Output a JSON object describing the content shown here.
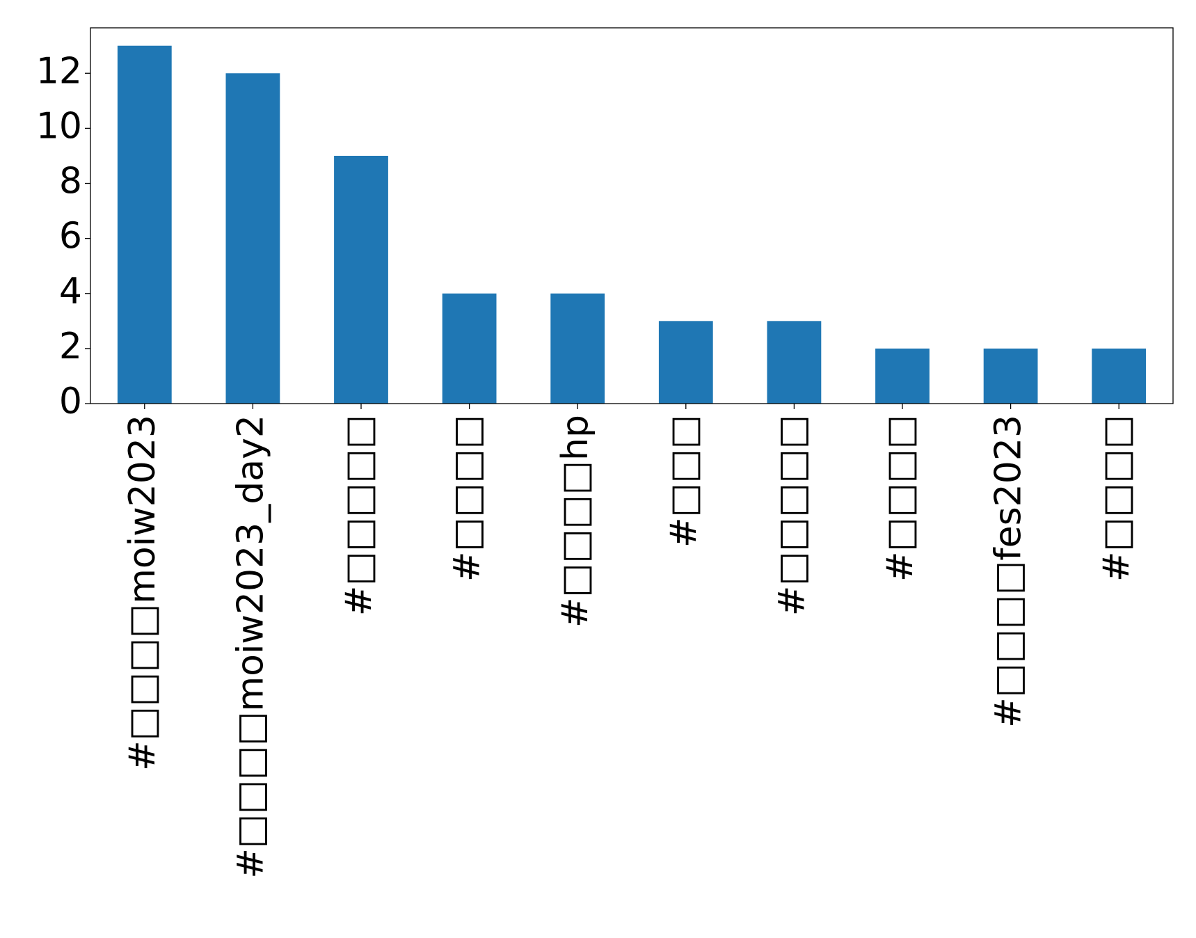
{
  "chart_data": {
    "type": "bar",
    "title": "",
    "xlabel": "",
    "ylabel": "",
    "categories": [
      "#□□□□moiw2023",
      "#□□□□moiw2023_day2",
      "#□□□□□",
      "#□□□□",
      "#□□□□hp",
      "#□□□",
      "#□□□□□",
      "#□□□□",
      "#□□□□fes2023",
      "#□□□□"
    ],
    "values": [
      13,
      12,
      9,
      4,
      4,
      3,
      3,
      2,
      2,
      2
    ],
    "ylim": [
      0,
      13.65
    ],
    "yticks": [
      0,
      2,
      4,
      6,
      8,
      10,
      12
    ],
    "grid": false,
    "bar_color": "#1f77b4",
    "legend": null
  }
}
